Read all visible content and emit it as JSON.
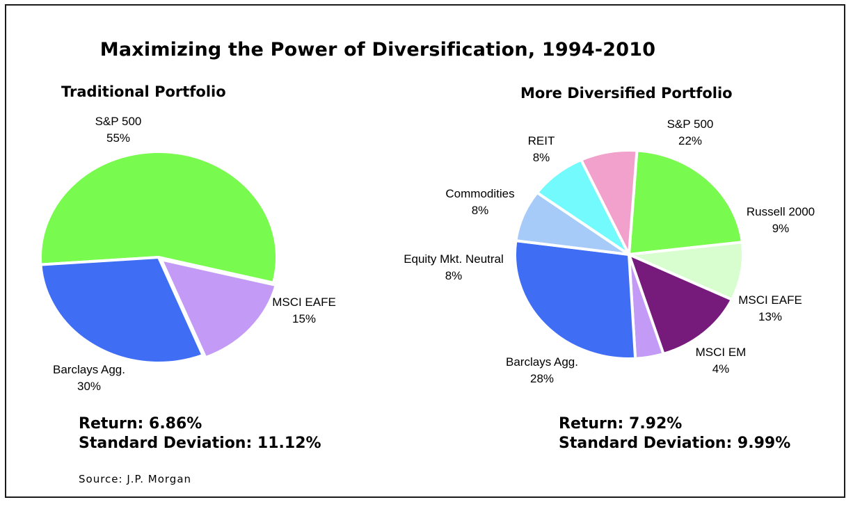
{
  "title": "Maximizing the Power of Diversification, 1994-2010",
  "source": "Source: J.P. Morgan",
  "colors": {
    "sp500": "#78fb4e",
    "barclays": "#3f6ef5",
    "msci_eafe_traditional": "#c39bf6",
    "russell2000": "#d8fdcf",
    "msci_eafe_diversified": "#761a7c",
    "msci_em": "#c39bf6",
    "equity_mkt_neutral": "#a6cbf8",
    "commodities": "#72fafc",
    "reit": "#f2a0cc"
  },
  "chart_data": [
    {
      "type": "pie",
      "title": "Traditional Portfolio",
      "slices": [
        {
          "name": "S&P 500",
          "value": 55,
          "label": "55%",
          "color": "#78fb4e"
        },
        {
          "name": "MSCI EAFE",
          "value": 15,
          "label": "15%",
          "color": "#c39bf6"
        },
        {
          "name": "Barclays Agg.",
          "value": 30,
          "label": "30%",
          "color": "#3f6ef5"
        }
      ],
      "stats": {
        "return": "Return: 6.86%",
        "std_dev": "Standard Deviation: 11.12%"
      }
    },
    {
      "type": "pie",
      "title": "More Diversified Portfolio",
      "slices": [
        {
          "name": "S&P 500",
          "value": 22,
          "label": "22%",
          "color": "#78fb4e"
        },
        {
          "name": "Russell 2000",
          "value": 9,
          "label": "9%",
          "color": "#d8fdcf"
        },
        {
          "name": "MSCI EAFE",
          "value": 13,
          "label": "13%",
          "color": "#761a7c"
        },
        {
          "name": "MSCI EM",
          "value": 4,
          "label": "4%",
          "color": "#c39bf6"
        },
        {
          "name": "Barclays Agg.",
          "value": 28,
          "label": "28%",
          "color": "#3f6ef5"
        },
        {
          "name": "Equity Mkt. Neutral",
          "value": 8,
          "label": "8%",
          "color": "#a6cbf8"
        },
        {
          "name": "Commodities",
          "value": 8,
          "label": "8%",
          "color": "#72fafc"
        },
        {
          "name": "REIT",
          "value": 8,
          "label": "8%",
          "color": "#f2a0cc"
        }
      ],
      "stats": {
        "return": "Return: 7.92%",
        "std_dev": "Standard Deviation: 9.99%"
      }
    }
  ]
}
